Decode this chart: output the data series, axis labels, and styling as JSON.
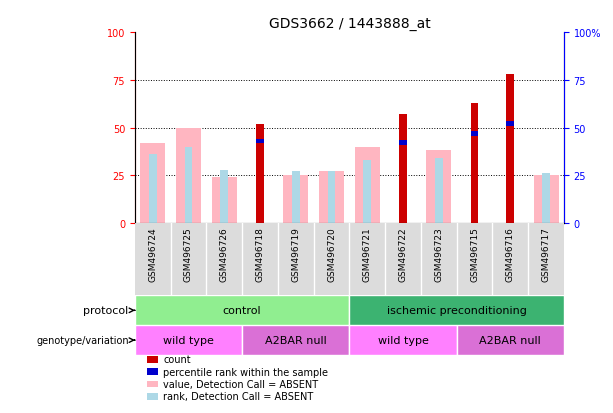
{
  "title": "GDS3662 / 1443888_at",
  "samples": [
    "GSM496724",
    "GSM496725",
    "GSM496726",
    "GSM496718",
    "GSM496719",
    "GSM496720",
    "GSM496721",
    "GSM496722",
    "GSM496723",
    "GSM496715",
    "GSM496716",
    "GSM496717"
  ],
  "count": [
    0,
    0,
    0,
    52,
    0,
    0,
    0,
    57,
    0,
    63,
    78,
    0
  ],
  "percentile_rank": [
    0,
    0,
    0,
    43,
    0,
    0,
    0,
    42,
    0,
    47,
    52,
    0
  ],
  "value_absent": [
    42,
    50,
    24,
    0,
    25,
    27,
    40,
    0,
    38,
    0,
    0,
    25
  ],
  "rank_absent": [
    36,
    40,
    28,
    0,
    27,
    27,
    33,
    0,
    34,
    0,
    0,
    26
  ],
  "protocol_groups": [
    {
      "label": "control",
      "start": 0,
      "end": 6,
      "color": "#90EE90"
    },
    {
      "label": "ischemic preconditioning",
      "start": 6,
      "end": 12,
      "color": "#3CB371"
    }
  ],
  "genotype_groups": [
    {
      "label": "wild type",
      "start": 0,
      "end": 3,
      "color": "#FF80FF"
    },
    {
      "label": "A2BAR null",
      "start": 3,
      "end": 6,
      "color": "#DA70D6"
    },
    {
      "label": "wild type",
      "start": 6,
      "end": 9,
      "color": "#FF80FF"
    },
    {
      "label": "A2BAR null",
      "start": 9,
      "end": 12,
      "color": "#DA70D6"
    }
  ],
  "count_color": "#CC0000",
  "percentile_color": "#0000CC",
  "value_absent_color": "#FFB6C1",
  "rank_absent_color": "#ADD8E6",
  "ylim": [
    0,
    100
  ],
  "bg_color": "#DCDCDC",
  "protocol_label_color": "#000000",
  "green_light": "#90EE90",
  "green_dark": "#3CB371",
  "pink_light": "#FF80FF",
  "pink_dark": "#CC66CC"
}
